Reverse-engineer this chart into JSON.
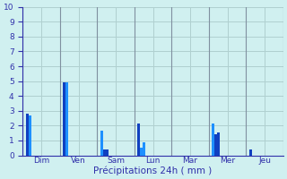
{
  "background_color": "#d0f0f0",
  "grid_color": "#b0d0d0",
  "sep_color": "#8090a0",
  "xlabel": "Précipitations 24h ( mm )",
  "ylim": [
    0,
    10
  ],
  "yticks": [
    0,
    1,
    2,
    3,
    4,
    5,
    6,
    7,
    8,
    9,
    10
  ],
  "axis_color": "#3030aa",
  "days": [
    "Dim",
    "Ven",
    "Sam",
    "Lun",
    "Mar",
    "Mer",
    "Jeu"
  ],
  "bars": [
    {
      "day": "Dim",
      "vals": [
        2.8,
        2.7
      ],
      "colors": [
        "#1040c0",
        "#1e90ff"
      ]
    },
    {
      "day": "Ven",
      "vals": [
        4.9,
        4.9
      ],
      "colors": [
        "#1040c0",
        "#1e90ff"
      ]
    },
    {
      "day": "Sam",
      "vals": [
        1.65,
        0.38,
        0.38
      ],
      "colors": [
        "#1e90ff",
        "#1040c0",
        "#1040c0"
      ]
    },
    {
      "day": "Lun",
      "vals": [
        2.15,
        0.5,
        0.85
      ],
      "colors": [
        "#1040c0",
        "#1e90ff",
        "#1e90ff"
      ]
    },
    {
      "day": "Mar",
      "vals": [],
      "colors": []
    },
    {
      "day": "Mer",
      "vals": [
        2.15,
        1.45,
        1.55
      ],
      "colors": [
        "#1e90ff",
        "#1040c0",
        "#1040c0"
      ]
    },
    {
      "day": "Jeu",
      "vals": [
        0.38
      ],
      "colors": [
        "#1040c0"
      ]
    }
  ],
  "bar_width": 0.07,
  "bar_gap": 0.075,
  "tick_fontsize": 6.5,
  "xlabel_fontsize": 7.5
}
